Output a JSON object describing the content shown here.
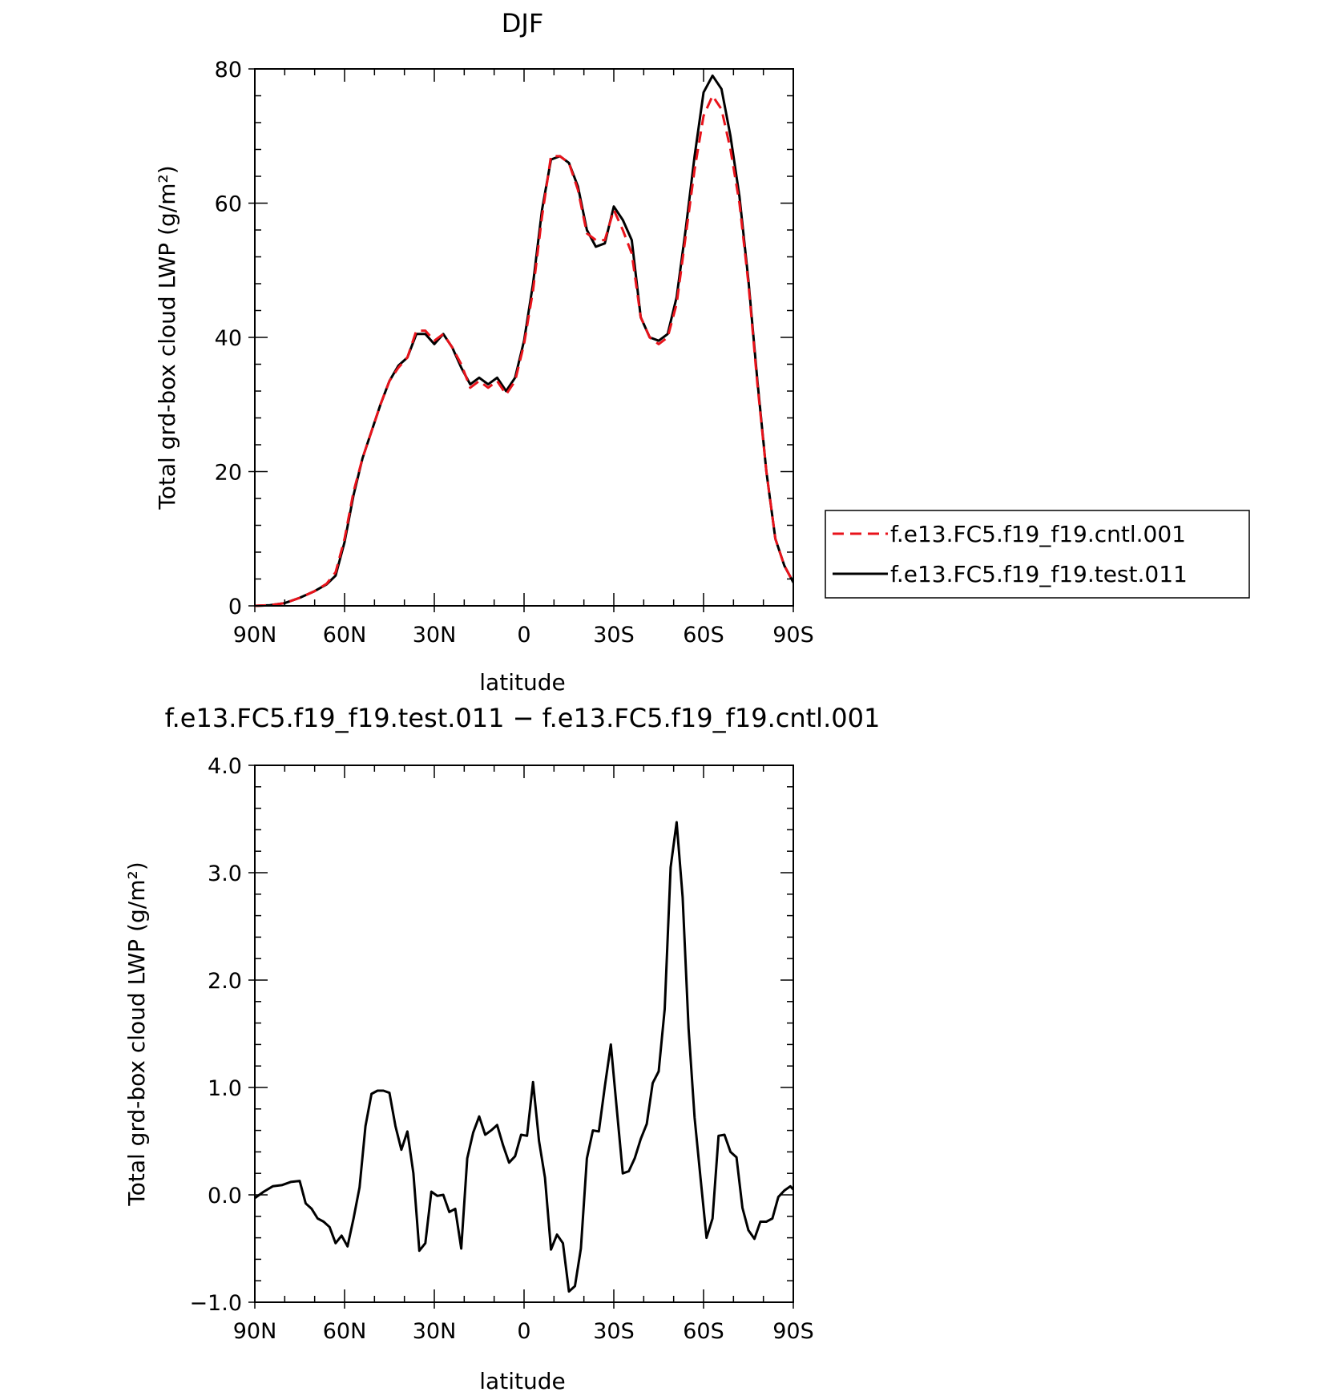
{
  "colors": {
    "cntl": "#e8131b",
    "test": "#000000"
  },
  "chart_data": [
    {
      "type": "line",
      "title": "DJF",
      "xlabel": "latitude",
      "ylabel": "Total grd-box cloud LWP (g/m²)",
      "x_note": "x in degrees latitude, north positive, plotted from 90N (left) to 90S (right)",
      "xlim": [
        90,
        -90
      ],
      "ylim": [
        0,
        80
      ],
      "x_ticks": [
        90,
        60,
        30,
        0,
        -30,
        -60,
        -90
      ],
      "x_tick_labels": [
        "90N",
        "60N",
        "30N",
        "0",
        "30S",
        "60S",
        "90S"
      ],
      "y_ticks": [
        0,
        20,
        40,
        60,
        80
      ],
      "y_tick_labels": [
        "0",
        "20",
        "40",
        "60",
        "80"
      ],
      "legend": "right",
      "series": [
        {
          "name": "f.e13.FC5.f19_f19.cntl.001",
          "style": "dashed",
          "points": [
            [
              90,
              0
            ],
            [
              85,
              0.1
            ],
            [
              80,
              0.4
            ],
            [
              75,
              1.2
            ],
            [
              70,
              2.2
            ],
            [
              66,
              3.3
            ],
            [
              63,
              5
            ],
            [
              60,
              10
            ],
            [
              57,
              17
            ],
            [
              54,
              22
            ],
            [
              51,
              26
            ],
            [
              48,
              30
            ],
            [
              45,
              33.5
            ],
            [
              42,
              35.5
            ],
            [
              39,
              37
            ],
            [
              36,
              41
            ],
            [
              33,
              41
            ],
            [
              30,
              39.5
            ],
            [
              27,
              40.5
            ],
            [
              24,
              38.5
            ],
            [
              21,
              36
            ],
            [
              18,
              32.5
            ],
            [
              15,
              33.5
            ],
            [
              12,
              32.5
            ],
            [
              9,
              33.5
            ],
            [
              6,
              31.5
            ],
            [
              3,
              33.5
            ],
            [
              0,
              39
            ],
            [
              -3,
              47
            ],
            [
              -6,
              58
            ],
            [
              -9,
              67
            ],
            [
              -12,
              67
            ],
            [
              -15,
              66
            ],
            [
              -18,
              62
            ],
            [
              -21,
              55.5
            ],
            [
              -24,
              54.5
            ],
            [
              -27,
              54.5
            ],
            [
              -30,
              59
            ],
            [
              -33,
              56
            ],
            [
              -36,
              52.5
            ],
            [
              -39,
              43
            ],
            [
              -42,
              40
            ],
            [
              -45,
              39
            ],
            [
              -48,
              40
            ],
            [
              -51,
              45
            ],
            [
              -54,
              55
            ],
            [
              -57,
              65
            ],
            [
              -60,
              73
            ],
            [
              -63,
              76
            ],
            [
              -66,
              74
            ],
            [
              -69,
              68
            ],
            [
              -72,
              60
            ],
            [
              -75,
              48
            ],
            [
              -78,
              33
            ],
            [
              -81,
              20
            ],
            [
              -84,
              10
            ],
            [
              -87,
              6
            ],
            [
              -90,
              3.5
            ],
            [
              -93,
              1
            ],
            [
              -96,
              0.5
            ],
            [
              -100,
              0
            ]
          ]
        },
        {
          "name": "f.e13.FC5.f19_f19.test.011",
          "style": "solid",
          "points": [
            [
              90,
              0
            ],
            [
              85,
              0.1
            ],
            [
              80,
              0.4
            ],
            [
              75,
              1.2
            ],
            [
              70,
              2.2
            ],
            [
              66,
              3.2
            ],
            [
              63,
              4.5
            ],
            [
              60,
              9.5
            ],
            [
              57,
              16.5
            ],
            [
              54,
              22
            ],
            [
              51,
              26
            ],
            [
              48,
              30
            ],
            [
              45,
              33.5
            ],
            [
              42,
              35.8
            ],
            [
              39,
              37
            ],
            [
              36,
              40.5
            ],
            [
              33,
              40.5
            ],
            [
              30,
              39
            ],
            [
              27,
              40.5
            ],
            [
              24,
              38.5
            ],
            [
              21,
              35.5
            ],
            [
              18,
              33
            ],
            [
              15,
              34
            ],
            [
              12,
              33
            ],
            [
              9,
              34
            ],
            [
              6,
              32
            ],
            [
              3,
              34
            ],
            [
              0,
              39.5
            ],
            [
              -3,
              48
            ],
            [
              -6,
              59
            ],
            [
              -9,
              66.5
            ],
            [
              -12,
              67
            ],
            [
              -15,
              66
            ],
            [
              -18,
              62.5
            ],
            [
              -21,
              56
            ],
            [
              -24,
              53.5
            ],
            [
              -27,
              54
            ],
            [
              -30,
              59.5
            ],
            [
              -33,
              57.5
            ],
            [
              -36,
              54.5
            ],
            [
              -39,
              43
            ],
            [
              -42,
              40
            ],
            [
              -45,
              39.5
            ],
            [
              -48,
              40.5
            ],
            [
              -51,
              46
            ],
            [
              -54,
              56
            ],
            [
              -57,
              67
            ],
            [
              -60,
              76.5
            ],
            [
              -63,
              79
            ],
            [
              -66,
              77
            ],
            [
              -69,
              70
            ],
            [
              -72,
              61
            ],
            [
              -75,
              48.5
            ],
            [
              -78,
              33.5
            ],
            [
              -81,
              20
            ],
            [
              -84,
              10
            ],
            [
              -87,
              6
            ],
            [
              -90,
              3.5
            ],
            [
              -93,
              1
            ],
            [
              -96,
              0.5
            ],
            [
              -100,
              0
            ]
          ]
        }
      ]
    },
    {
      "type": "line",
      "title": "f.e13.FC5.f19_f19.test.011 − f.e13.FC5.f19_f19.cntl.001",
      "xlabel": "latitude",
      "ylabel": "Total grd-box cloud LWP (g/m²)",
      "xlim": [
        90,
        -90
      ],
      "ylim": [
        -1,
        4
      ],
      "x_ticks": [
        90,
        60,
        30,
        0,
        -30,
        -60,
        -90
      ],
      "x_tick_labels": [
        "90N",
        "60N",
        "30N",
        "0",
        "30S",
        "60S",
        "90S"
      ],
      "y_ticks": [
        -1,
        0,
        1,
        2,
        3,
        4
      ],
      "y_tick_labels": [
        "−1.0",
        "0.0",
        "1.0",
        "2.0",
        "3.0",
        "4.0"
      ],
      "series": [
        {
          "name": "",
          "style": "solid",
          "points": [
            [
              90,
              -0.03
            ],
            [
              87,
              0.03
            ],
            [
              84,
              0.08
            ],
            [
              81,
              0.09
            ],
            [
              78,
              0.12
            ],
            [
              75,
              0.13
            ],
            [
              73,
              -0.08
            ],
            [
              71,
              -0.13
            ],
            [
              69,
              -0.22
            ],
            [
              67,
              -0.25
            ],
            [
              65,
              -0.3
            ],
            [
              63,
              -0.45
            ],
            [
              61,
              -0.38
            ],
            [
              59,
              -0.48
            ],
            [
              57,
              -0.22
            ],
            [
              55,
              0.07
            ],
            [
              53,
              0.64
            ],
            [
              51,
              0.94
            ],
            [
              49,
              0.97
            ],
            [
              47,
              0.97
            ],
            [
              45,
              0.95
            ],
            [
              43,
              0.64
            ],
            [
              41,
              0.42
            ],
            [
              39,
              0.59
            ],
            [
              37,
              0.2
            ],
            [
              35,
              -0.52
            ],
            [
              33,
              -0.45
            ],
            [
              31,
              0.03
            ],
            [
              29,
              -0.01
            ],
            [
              27,
              0
            ],
            [
              25,
              -0.16
            ],
            [
              23,
              -0.13
            ],
            [
              21,
              -0.5
            ],
            [
              19,
              0.34
            ],
            [
              17,
              0.58
            ],
            [
              15,
              0.73
            ],
            [
              13,
              0.56
            ],
            [
              11,
              0.6
            ],
            [
              9,
              0.65
            ],
            [
              7,
              0.46
            ],
            [
              5,
              0.3
            ],
            [
              3,
              0.36
            ],
            [
              1,
              0.56
            ],
            [
              -1,
              0.55
            ],
            [
              -3,
              1.05
            ],
            [
              -5,
              0.5
            ],
            [
              -7,
              0.16
            ],
            [
              -9,
              -0.51
            ],
            [
              -11,
              -0.37
            ],
            [
              -13,
              -0.45
            ],
            [
              -15,
              -0.9
            ],
            [
              -17,
              -0.85
            ],
            [
              -19,
              -0.5
            ],
            [
              -21,
              0.34
            ],
            [
              -23,
              0.6
            ],
            [
              -25,
              0.59
            ],
            [
              -27,
              1.01
            ],
            [
              -29,
              1.4
            ],
            [
              -31,
              0.8
            ],
            [
              -33,
              0.2
            ],
            [
              -35,
              0.22
            ],
            [
              -37,
              0.34
            ],
            [
              -39,
              0.52
            ],
            [
              -41,
              0.66
            ],
            [
              -43,
              1.04
            ],
            [
              -45,
              1.15
            ],
            [
              -47,
              1.73
            ],
            [
              -49,
              3.05
            ],
            [
              -51,
              3.47
            ],
            [
              -53,
              2.77
            ],
            [
              -55,
              1.55
            ],
            [
              -57,
              0.72
            ],
            [
              -59,
              0.15
            ],
            [
              -61,
              -0.4
            ],
            [
              -63,
              -0.22
            ],
            [
              -65,
              0.55
            ],
            [
              -67,
              0.56
            ],
            [
              -69,
              0.4
            ],
            [
              -71,
              0.35
            ],
            [
              -73,
              -0.12
            ],
            [
              -75,
              -0.33
            ],
            [
              -77,
              -0.41
            ],
            [
              -79,
              -0.25
            ],
            [
              -81,
              -0.25
            ],
            [
              -83,
              -0.22
            ],
            [
              -85,
              -0.02
            ],
            [
              -87,
              0.04
            ],
            [
              -89,
              0.08
            ],
            [
              -91,
              0.02
            ],
            [
              -93,
              -0.02
            ],
            [
              -95,
              0
            ],
            [
              -97,
              0
            ],
            [
              -99,
              0
            ]
          ]
        }
      ]
    }
  ]
}
